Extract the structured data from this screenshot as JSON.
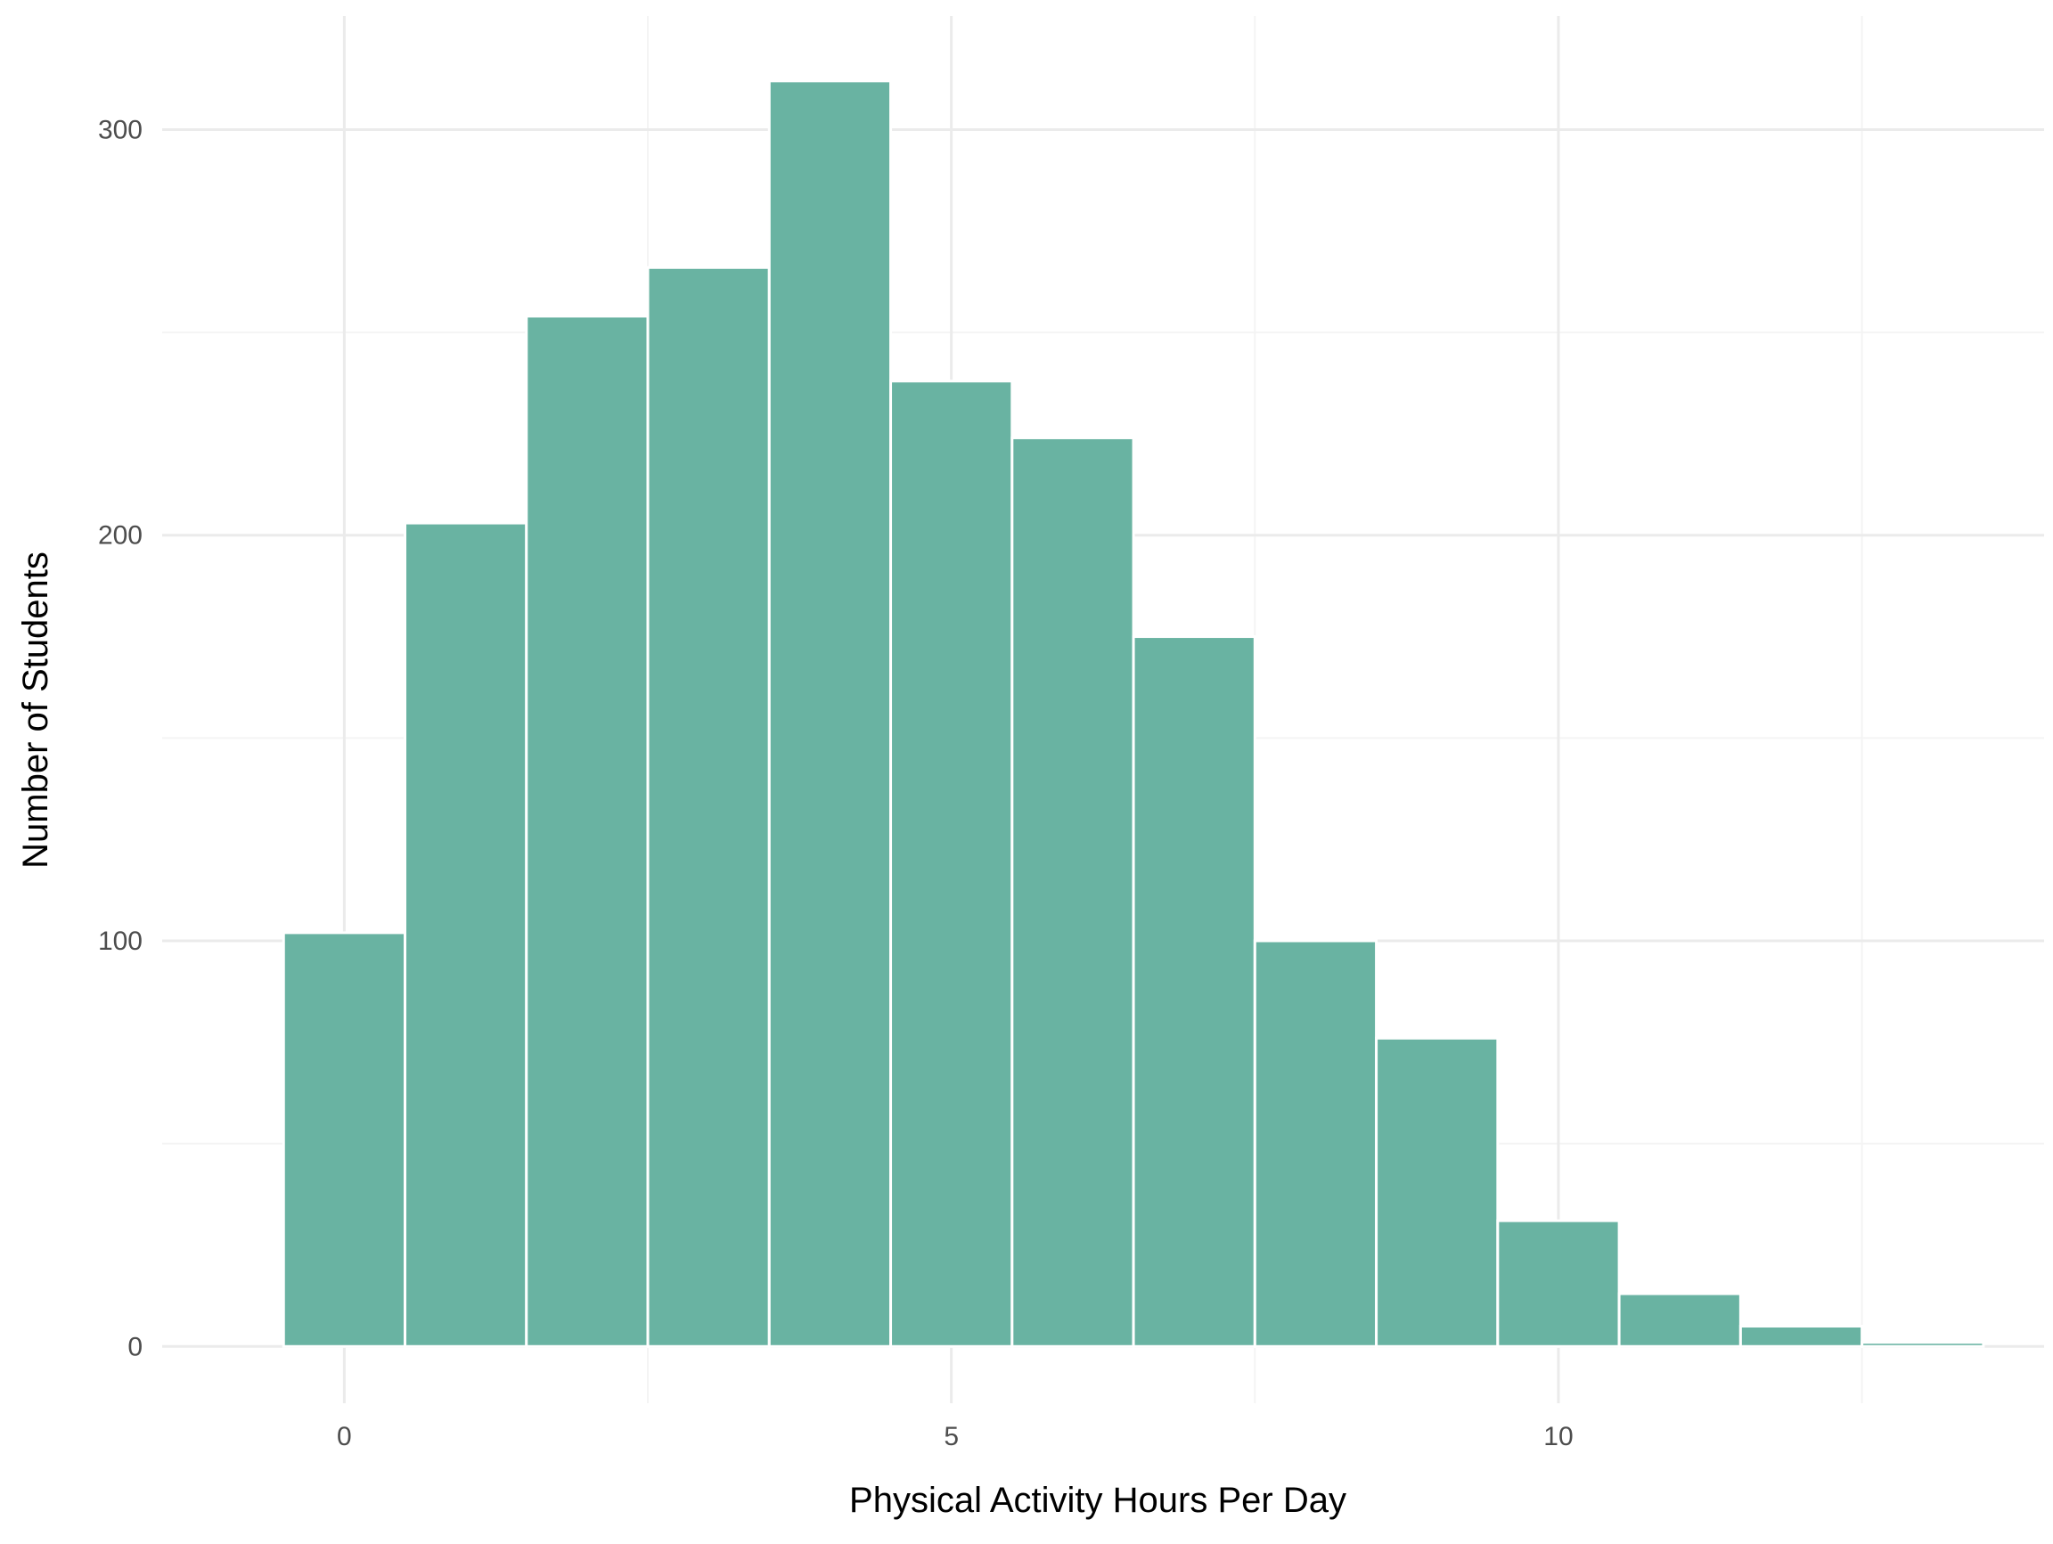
{
  "chart_data": {
    "type": "bar",
    "title": "",
    "xlabel": "Physical Activity Hours Per Day",
    "ylabel": "Number of Students",
    "xlim": [
      -1.5,
      14.0
    ],
    "ylim": [
      -14,
      328
    ],
    "x_ticks": [
      {
        "value": 0,
        "label": "0"
      },
      {
        "value": 5,
        "label": "5"
      },
      {
        "value": 10,
        "label": "10"
      }
    ],
    "x_minor_gridlines": [
      2.5,
      7.5,
      12.5
    ],
    "y_ticks": [
      {
        "value": 0,
        "label": "0"
      },
      {
        "value": 100,
        "label": "100"
      },
      {
        "value": 200,
        "label": "200"
      },
      {
        "value": 300,
        "label": "300"
      }
    ],
    "y_minor_gridlines": [
      50,
      150,
      250
    ],
    "grid": true,
    "bin_width": 1,
    "bin_centers": [
      0,
      1,
      2,
      3,
      4,
      5,
      6,
      7,
      8,
      9,
      10,
      11,
      12,
      13
    ],
    "values": [
      102,
      203,
      254,
      266,
      312,
      238,
      224,
      175,
      100,
      76,
      31,
      13,
      5,
      1
    ],
    "colors": {
      "bar_fill": "#69B3A2",
      "bar_outline": "#FFFFFF",
      "grid_major": "#EBEBEB",
      "grid_minor": "#F4F4F4",
      "tick_text": "#4D4D4D",
      "axis_title": "#000000"
    }
  }
}
